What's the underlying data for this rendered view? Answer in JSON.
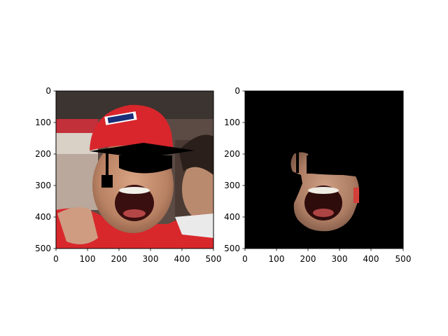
{
  "axes": [
    {
      "id": "left",
      "x_ticks": [
        "0",
        "100",
        "200",
        "300",
        "400",
        "500"
      ],
      "y_ticks": [
        "0",
        "100",
        "200",
        "300",
        "400",
        "500"
      ],
      "content": "photo of a cheering man in a red cap with a black graduation cap overlay"
    },
    {
      "id": "right",
      "x_ticks": [
        "0",
        "100",
        "200",
        "300",
        "400",
        "500"
      ],
      "y_ticks": [
        "0",
        "100",
        "200",
        "300",
        "400",
        "500"
      ],
      "content": "segmentation mask showing only the face region on black background"
    }
  ],
  "colors": {
    "mask_background": "#000000",
    "cap_red": "#d8262c",
    "skin": "#c9926f",
    "shirt_red": "#e02a2a",
    "graduation_cap": "#000000"
  }
}
